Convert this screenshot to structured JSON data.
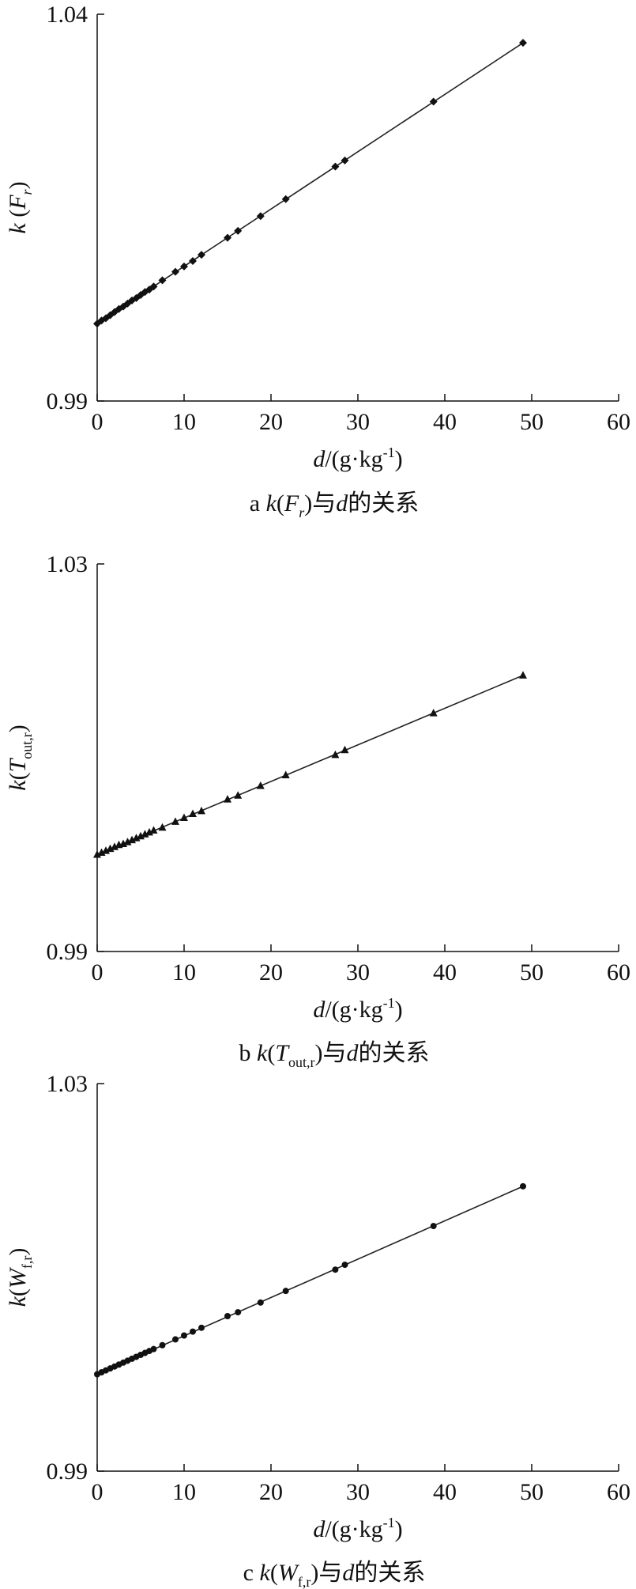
{
  "chart_data": [
    {
      "type": "scatter",
      "caption": {
        "letter": "a",
        "k": "k",
        "paren_open": "(",
        "var": "F",
        "sub": "r",
        "paren_close": ")",
        "rel": "与",
        "d": "d",
        "tail": "的关系"
      },
      "ylabel": {
        "k": "k",
        "open": " (",
        "var": "F",
        "sub": "r",
        "close": ")"
      },
      "xlabel": {
        "d": "d",
        "unit": "/(g·kg",
        "exp": "-1",
        "close": ")"
      },
      "xlim": [
        0,
        60
      ],
      "ylim": [
        0.99,
        1.04
      ],
      "xticks": [
        "0",
        "10",
        "20",
        "30",
        "40",
        "50",
        "60"
      ],
      "yticks": [
        "0.99",
        "1.04"
      ],
      "marker": "diamond",
      "fit_line": {
        "x": [
          0,
          49
        ],
        "y": [
          1.0,
          1.0363
        ]
      },
      "series": [
        {
          "x": [
            0,
            0.5,
            1,
            1.5,
            2,
            2.5,
            3,
            3.5,
            4,
            4.5,
            5,
            5.5,
            6,
            6.5,
            7.5,
            9,
            10,
            11,
            12,
            15,
            16.2,
            18.8,
            21.7,
            27.4,
            28.5,
            38.7,
            49
          ],
          "y": [
            1.0,
            1.0004,
            1.0007,
            1.0011,
            1.0015,
            1.0019,
            1.0022,
            1.0026,
            1.003,
            1.0033,
            1.0037,
            1.0041,
            1.0044,
            1.0048,
            1.0056,
            1.0067,
            1.0074,
            1.0081,
            1.0089,
            1.0111,
            1.012,
            1.0139,
            1.0161,
            1.0203,
            1.0211,
            1.0287,
            1.0363
          ]
        }
      ]
    },
    {
      "type": "scatter",
      "caption": {
        "letter": "b",
        "k": "k",
        "paren_open": "(",
        "var": "T",
        "sub": "out,r",
        "paren_close": ")",
        "rel": "与",
        "d": "d",
        "tail": "的关系"
      },
      "ylabel": {
        "k": "k",
        "open": "(",
        "var": "T",
        "sub": "out,r",
        "close": ")"
      },
      "xlabel": {
        "d": "d",
        "unit": "/(g·kg",
        "exp": "-1",
        "close": ")"
      },
      "xlim": [
        0,
        60
      ],
      "ylim": [
        0.99,
        1.03
      ],
      "xticks": [
        "0",
        "10",
        "20",
        "30",
        "40",
        "50",
        "60"
      ],
      "yticks": [
        "0.99",
        "1.03"
      ],
      "marker": "triangle",
      "fit_line": {
        "x": [
          0,
          49
        ],
        "y": [
          1.0,
          1.0185
        ]
      },
      "series": [
        {
          "x": [
            0,
            0.5,
            1,
            1.5,
            2,
            2.5,
            3,
            3.5,
            4,
            4.5,
            5,
            5.5,
            6,
            6.5,
            7.5,
            9,
            10,
            11,
            12,
            15,
            16.2,
            18.8,
            21.7,
            27.4,
            28.5,
            38.7,
            49
          ],
          "y": [
            1.0,
            1.0002,
            1.0004,
            1.0006,
            1.0008,
            1.001,
            1.0011,
            1.0013,
            1.0015,
            1.0017,
            1.0019,
            1.0021,
            1.0023,
            1.0025,
            1.0028,
            1.0034,
            1.0038,
            1.0042,
            1.0045,
            1.0057,
            1.0061,
            1.0071,
            1.0082,
            1.0103,
            1.0108,
            1.0146,
            1.0185
          ]
        }
      ]
    },
    {
      "type": "scatter",
      "caption": {
        "letter": "c",
        "k": "k",
        "paren_open": "(",
        "var": "W",
        "sub": "f,r",
        "paren_close": ")",
        "rel": "与",
        "d": "d",
        "tail": "的关系"
      },
      "ylabel": {
        "k": "k",
        "open": "(",
        "var": "W",
        "sub": "f,r",
        "close": ")"
      },
      "xlabel": {
        "d": "d",
        "unit": "/(g·kg",
        "exp": "-1",
        "close": ")"
      },
      "xlim": [
        0,
        60
      ],
      "ylim": [
        0.99,
        1.03
      ],
      "xticks": [
        "0",
        "10",
        "20",
        "30",
        "40",
        "50",
        "60"
      ],
      "yticks": [
        "0.99",
        "1.03"
      ],
      "marker": "circle",
      "fit_line": {
        "x": [
          0,
          49
        ],
        "y": [
          1.0,
          1.0194
        ]
      },
      "series": [
        {
          "x": [
            0,
            0.5,
            1,
            1.5,
            2,
            2.5,
            3,
            3.5,
            4,
            4.5,
            5,
            5.5,
            6,
            6.5,
            7.5,
            9,
            10,
            11,
            12,
            15,
            16.2,
            18.8,
            21.7,
            27.4,
            28.5,
            38.7,
            49
          ],
          "y": [
            1.0,
            1.0002,
            1.0004,
            1.0006,
            1.0008,
            1.001,
            1.0012,
            1.0014,
            1.0016,
            1.0018,
            1.002,
            1.0022,
            1.0024,
            1.0026,
            1.003,
            1.0036,
            1.004,
            1.0044,
            1.0048,
            1.006,
            1.0064,
            1.0074,
            1.0086,
            1.0108,
            1.0113,
            1.0153,
            1.0194
          ]
        }
      ]
    }
  ]
}
